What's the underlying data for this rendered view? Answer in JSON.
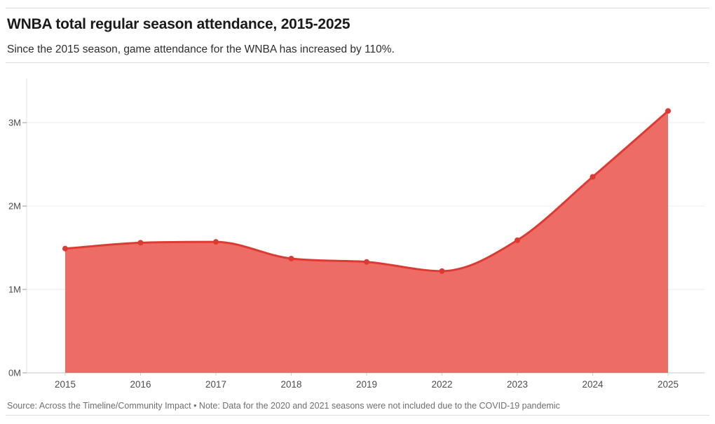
{
  "header": {
    "title": "WNBA total regular season attendance, 2015-2025",
    "subtitle": "Since the 2015 season, game attendance for the WNBA has increased by 110%."
  },
  "footer": {
    "source_note": "Source: Across the Timeline/Community Impact • Note: Data for the 2020 and 2021 seasons were not included due to the COVID-19 pandemic"
  },
  "chart_data": {
    "type": "area",
    "title": "WNBA total regular season attendance, 2015-2025",
    "subtitle": "Since the 2015 season, game attendance for the WNBA has increased by 110%.",
    "source_note": "Source: Across the Timeline/Community Impact • Note: Data for the 2020 and 2021 seasons were not included due to the COVID-19 pandemic",
    "categories": [
      "2015",
      "2016",
      "2017",
      "2018",
      "2019",
      "2022",
      "2023",
      "2024",
      "2025"
    ],
    "series": [
      {
        "name": "Total regular season attendance",
        "values": [
          1.49,
          1.56,
          1.57,
          1.37,
          1.33,
          1.22,
          1.59,
          2.35,
          3.14
        ]
      }
    ],
    "unit": "millions of attendees",
    "xlabel": "",
    "ylabel": "",
    "y_tick_values": [
      0,
      1,
      2,
      3
    ],
    "y_tick_labels": [
      "0M",
      "1M",
      "2M",
      "3M"
    ],
    "ylim": [
      0,
      3.53
    ],
    "grid": "horizontal",
    "legend": "none",
    "markers": "dots-on-every-point",
    "colors": {
      "line": "#dc3b33",
      "fill": "#ee6c66",
      "grid": "#ebebeb",
      "baseline": "#c7c7c7",
      "axis_line": "#e2e2e2",
      "y_tick": "#9a9a9a",
      "x_tick": "#cfcfcf",
      "axis_text": "#4d4d4d",
      "rule": "#dcdcdc"
    }
  }
}
